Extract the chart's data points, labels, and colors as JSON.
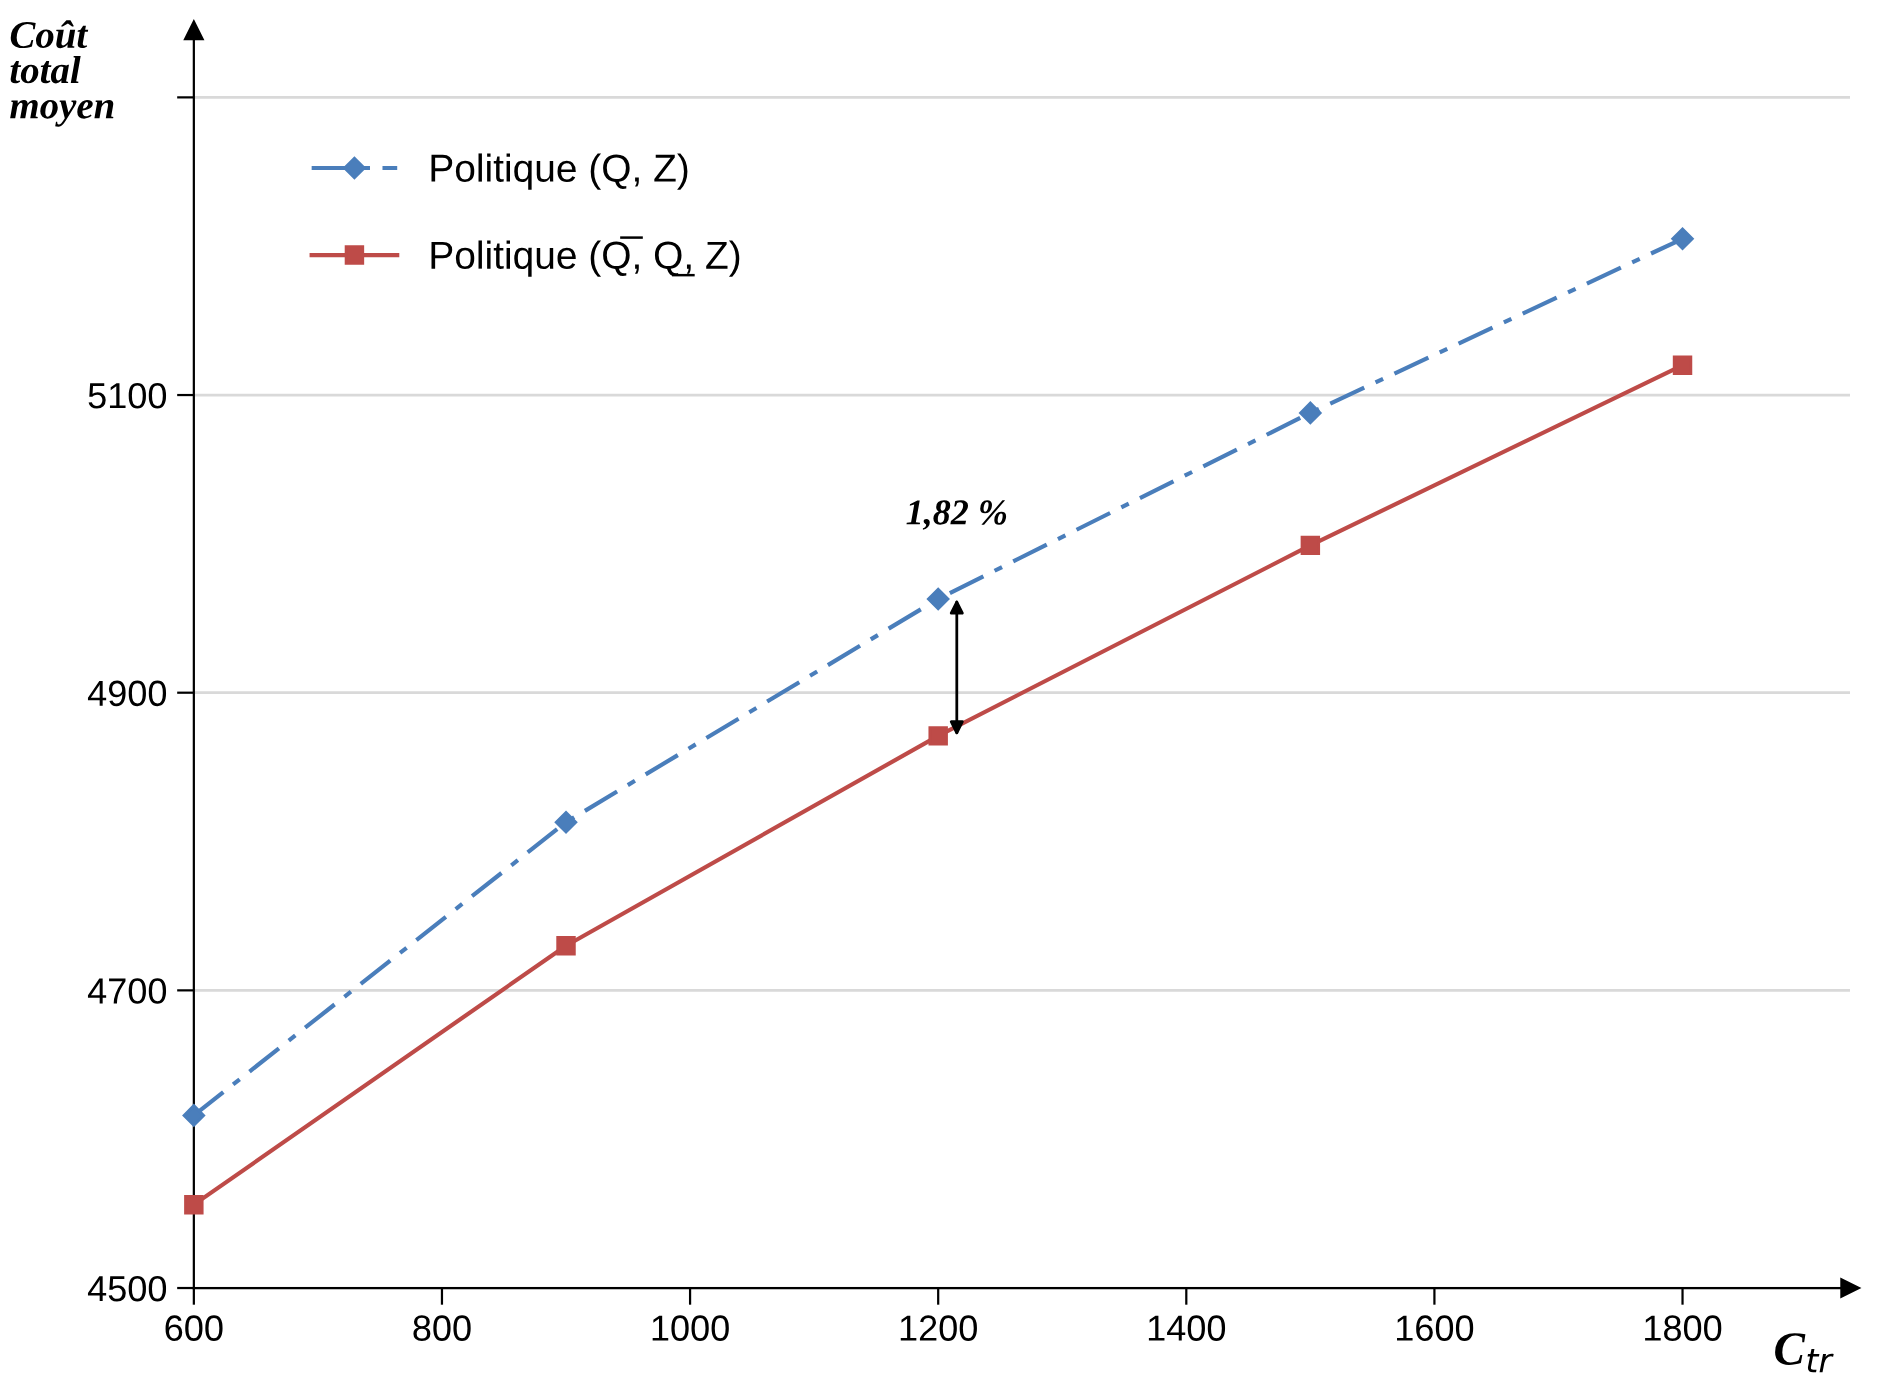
{
  "chart_data": {
    "type": "line",
    "xlabel": "C$_{tr}$",
    "ylabel": "Coût\ntotal\nmoyen",
    "x": [
      600,
      900,
      1200,
      1500,
      1800
    ],
    "series": [
      {
        "name": "Politique (Q, Z)",
        "color": "#4a7ebb",
        "values": [
          4616,
          4813,
          4963,
          5088,
          5205
        ],
        "marker": "diamond",
        "line_style": "dashdot"
      },
      {
        "name": "Politique (Q̅, Q̲, Z)",
        "color": "#be4b48",
        "values": [
          4556,
          4730,
          4871,
          4999,
          5120
        ],
        "marker": "square",
        "line_style": "solid"
      }
    ],
    "xlim": [
      600,
      1935
    ],
    "ylim": [
      4500,
      5345
    ],
    "xticks": [
      600,
      800,
      1000,
      1200,
      1400,
      1600,
      1800
    ],
    "yticks": [
      4500,
      4700,
      4900,
      5100,
      {
        "value": 5300,
        "label": null
      }
    ],
    "grid": "y",
    "legend": "top left",
    "annotations": [
      {
        "text": "1,82 %",
        "x": 1200,
        "y": 4963
      }
    ]
  }
}
